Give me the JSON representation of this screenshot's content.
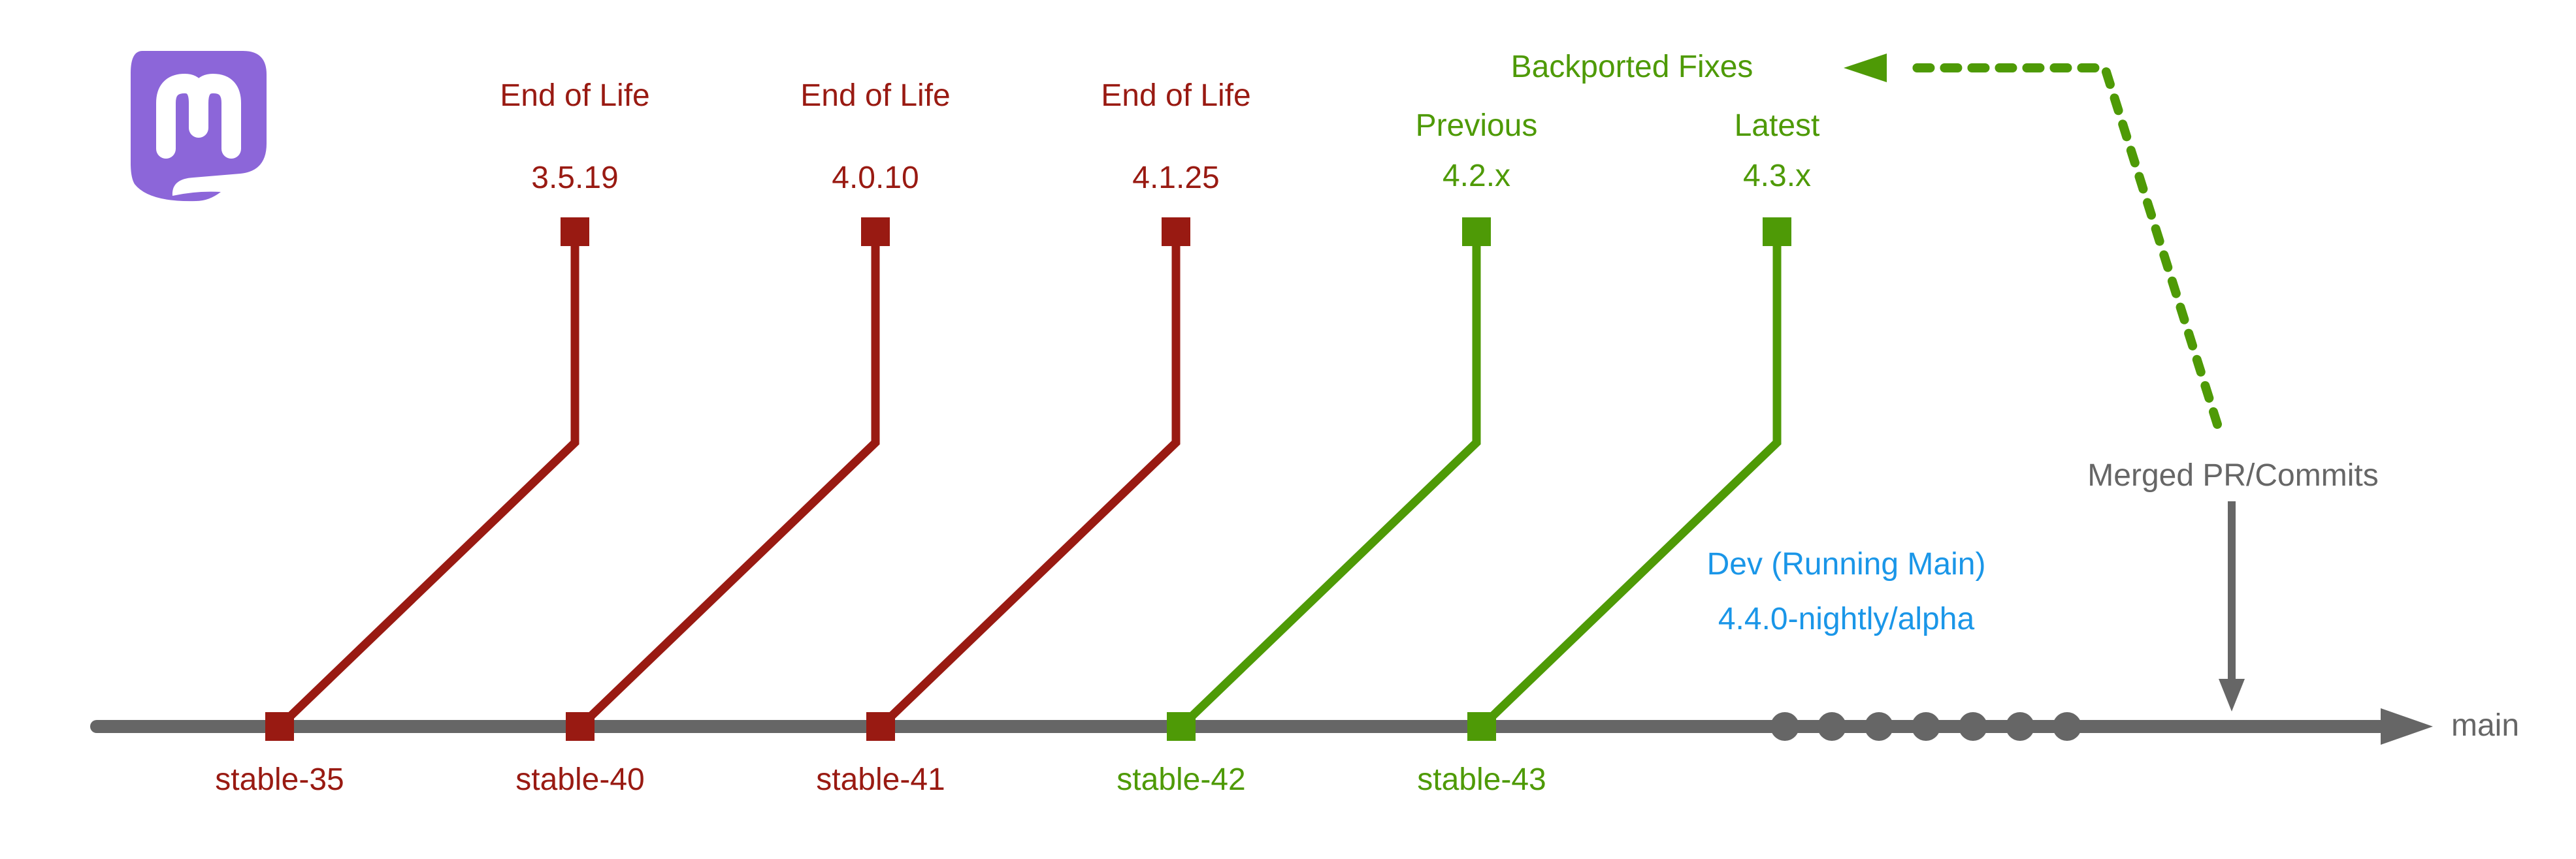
{
  "colors": {
    "eol": "#991A12",
    "supported": "#4E9A06",
    "main_line": "#666666",
    "dev_text": "#1A96E8",
    "logo": "#8C66D9",
    "background": "#FFFFFF"
  },
  "logo": {
    "name": "mastodon-logo",
    "icon": "mastodon-icon"
  },
  "branches": [
    {
      "name": "stable-35",
      "status": "End of Life",
      "version": "3.5.19",
      "state": "eol"
    },
    {
      "name": "stable-40",
      "status": "End of Life",
      "version": "4.0.10",
      "state": "eol"
    },
    {
      "name": "stable-41",
      "status": "End of Life",
      "version": "4.1.25",
      "state": "eol"
    },
    {
      "name": "stable-42",
      "status": "Previous",
      "version": "4.2.x",
      "state": "supported"
    },
    {
      "name": "stable-43",
      "status": "Latest",
      "version": "4.3.x",
      "state": "supported"
    }
  ],
  "main": {
    "label": "main"
  },
  "dev": {
    "title": "Dev (Running Main)",
    "version": "4.4.0-nightly/alpha",
    "commit_dots": 7
  },
  "merged": {
    "label": "Merged PR/Commits"
  },
  "backport": {
    "label": "Backported Fixes"
  }
}
